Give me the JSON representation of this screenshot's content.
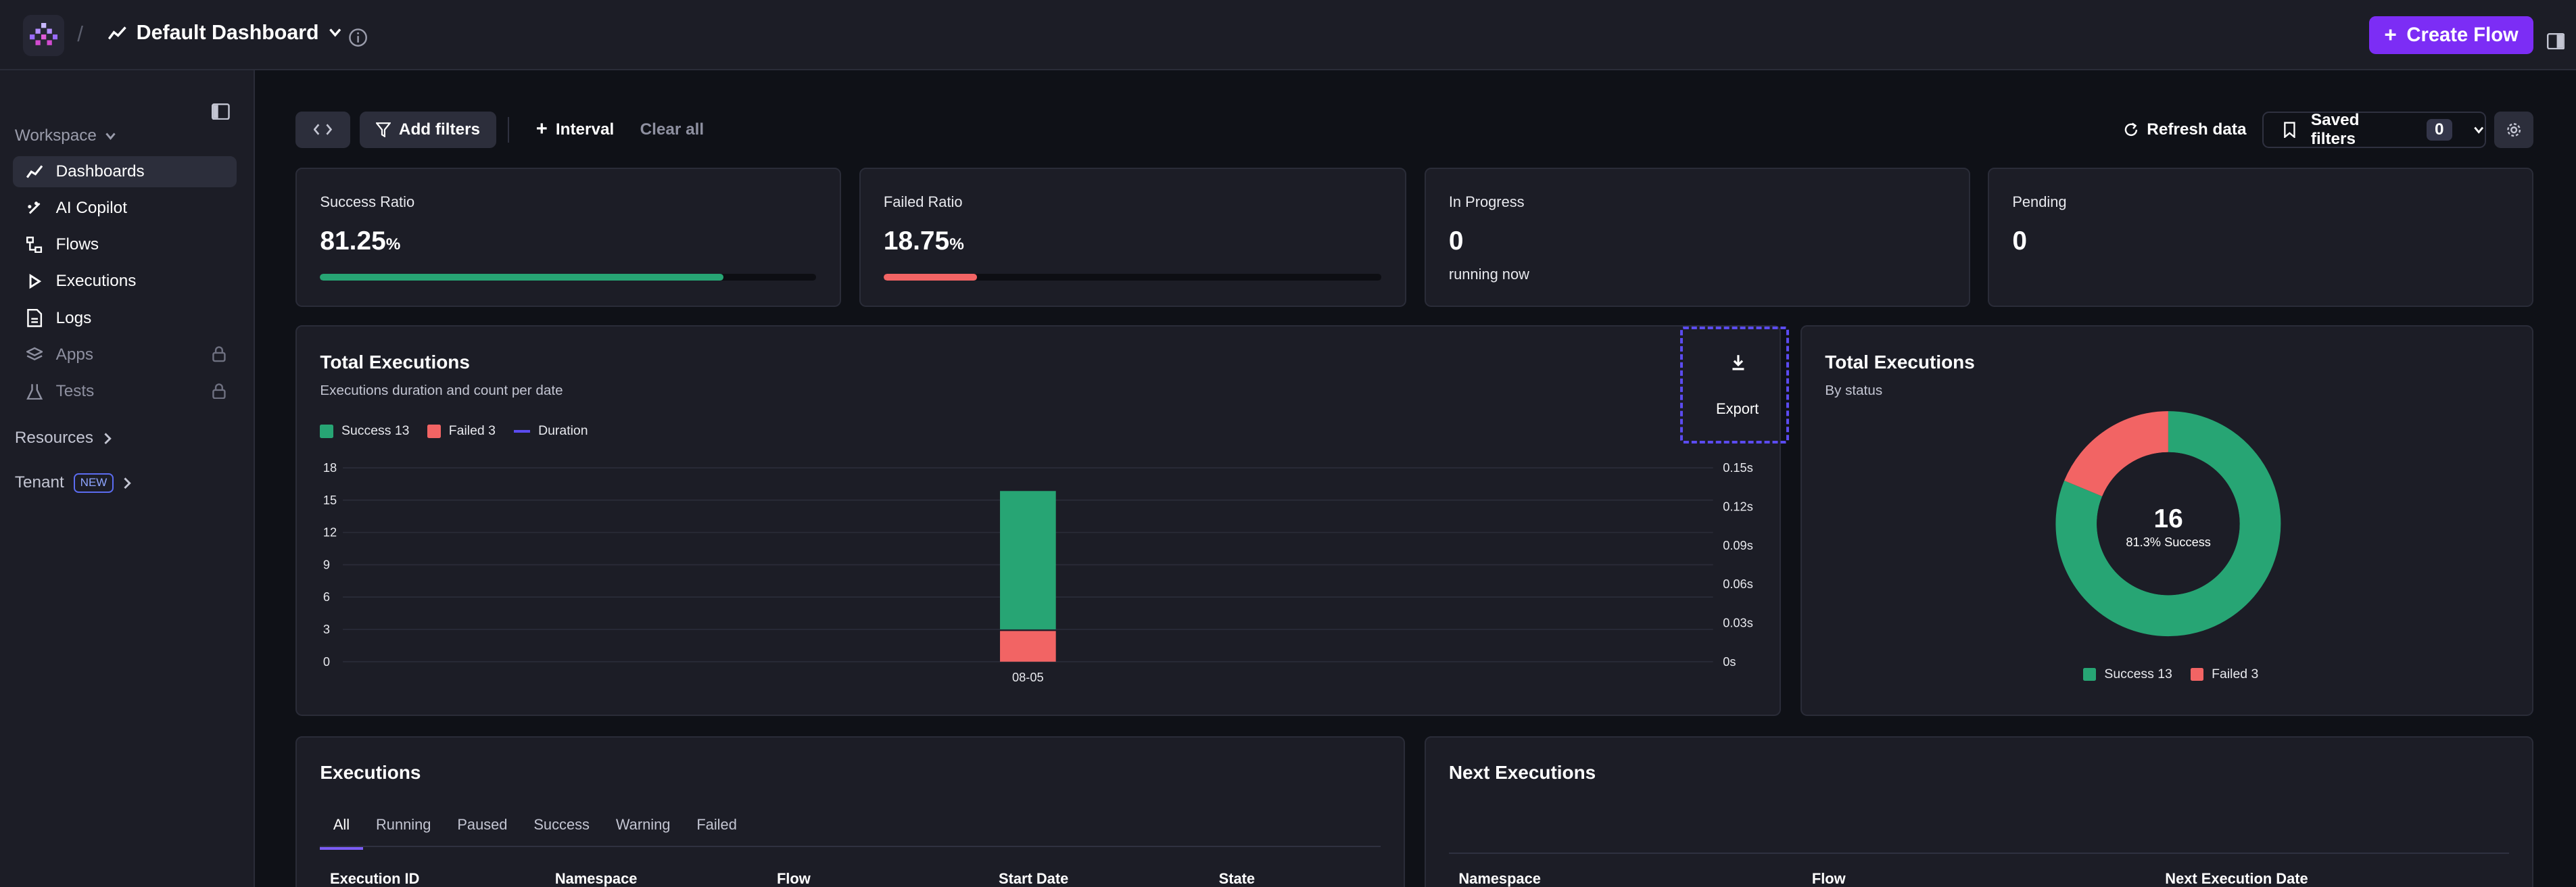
{
  "header": {
    "separator": "/",
    "dashboard_title": "Default Dashboard",
    "create_flow_label": "Create Flow"
  },
  "sidebar": {
    "workspace_label": "Workspace",
    "items": [
      {
        "label": "Dashboards",
        "icon": "chart-line-icon",
        "active": true
      },
      {
        "label": "AI Copilot",
        "icon": "sparkles-icon"
      },
      {
        "label": "Flows",
        "icon": "flow-icon"
      },
      {
        "label": "Executions",
        "icon": "play-icon"
      },
      {
        "label": "Logs",
        "icon": "file-text-icon"
      },
      {
        "label": "Apps",
        "icon": "layers-icon",
        "locked": true
      },
      {
        "label": "Tests",
        "icon": "flask-icon",
        "locked": true
      }
    ],
    "resources_label": "Resources",
    "tenant_label": "Tenant",
    "tenant_badge": "NEW"
  },
  "toolbar": {
    "add_filters_label": "Add filters",
    "interval_label": "Interval",
    "clear_all_label": "Clear all",
    "refresh_label": "Refresh data",
    "saved_filters_label": "Saved filters",
    "saved_filters_count": "0"
  },
  "stats": [
    {
      "label": "Success Ratio",
      "value": "81.25",
      "unit": "%",
      "progress": 0.8125,
      "color": "#27a574"
    },
    {
      "label": "Failed Ratio",
      "value": "18.75",
      "unit": "%",
      "progress": 0.1875,
      "color": "#f26464"
    },
    {
      "label": "In Progress",
      "value": "0",
      "sub": "running now"
    },
    {
      "label": "Pending",
      "value": "0"
    }
  ],
  "total_executions": {
    "title": "Total Executions",
    "subtitle": "Executions duration and count per date",
    "legend": {
      "success": "Success 13",
      "failed": "Failed 3",
      "duration": "Duration"
    },
    "export_label": "Export"
  },
  "status_donut": {
    "title": "Total Executions",
    "subtitle": "By status",
    "center_value": "16",
    "center_label": "81.3% Success",
    "legend": {
      "success": "Success 13",
      "failed": "Failed 3"
    }
  },
  "chart_data": [
    {
      "type": "bar",
      "title": "Total Executions",
      "categories": [
        "08-05"
      ],
      "series": [
        {
          "name": "Success 13",
          "values": [
            13
          ],
          "color": "#27a574"
        },
        {
          "name": "Failed 3",
          "values": [
            3
          ],
          "color": "#f26464"
        },
        {
          "name": "Duration",
          "values": [
            0
          ],
          "color": "#5b4bf0",
          "axis": "right"
        }
      ],
      "stacked": true,
      "ylim": [
        0,
        18
      ],
      "y_ticks": [
        "0",
        "3",
        "6",
        "9",
        "12",
        "15",
        "18"
      ],
      "y2_ticks": [
        "0s",
        "0.03s",
        "0.06s",
        "0.09s",
        "0.12s",
        "0.15s"
      ],
      "y2lim": [
        0,
        0.15
      ],
      "grid": true,
      "legend_position": "top-left"
    },
    {
      "type": "pie",
      "title": "Total Executions",
      "categories": [
        "Success 13",
        "Failed 3"
      ],
      "values": [
        13,
        3
      ],
      "colors": [
        "#27a574",
        "#f26464"
      ],
      "donut": true
    }
  ],
  "executions": {
    "title": "Executions",
    "tabs": [
      "All",
      "Running",
      "Paused",
      "Success",
      "Warning",
      "Failed"
    ],
    "columns": [
      "Execution ID",
      "Namespace",
      "Flow",
      "Start Date",
      "State"
    ]
  },
  "next_executions": {
    "title": "Next Executions",
    "columns": [
      "Namespace",
      "Flow",
      "Next Execution Date"
    ]
  }
}
